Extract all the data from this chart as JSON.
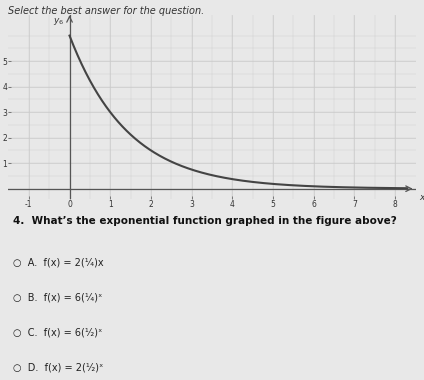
{
  "title_text": "Select the best answer for the question.",
  "graph_xlim": [
    -1.5,
    8.5
  ],
  "graph_ylim": [
    -0.4,
    6.8
  ],
  "graph_xticks": [
    -1,
    0,
    1,
    2,
    3,
    4,
    5,
    6,
    7,
    8
  ],
  "graph_yticks": [
    1,
    2,
    3,
    4,
    5
  ],
  "func_a": 6,
  "func_b": 0.5,
  "curve_color": "#444444",
  "grid_color": "#cccccc",
  "axis_color": "#555555",
  "bg_color": "#e8e8e8",
  "panel_bg": "#e8e8e8",
  "text_color": "#333333",
  "question": "4.  What’s the exponential function graphed in the figure above?",
  "opt_A": "A.  f(x) = 2(¹⁄₄)x",
  "opt_B": "B.  f(x) = 6(¹⁄₄)ˣ",
  "opt_C": "C.  f(x) = 6(¹⁄₂)ˣ",
  "opt_D": "D.  f(x) = 2(¹⁄₂)ˣ"
}
